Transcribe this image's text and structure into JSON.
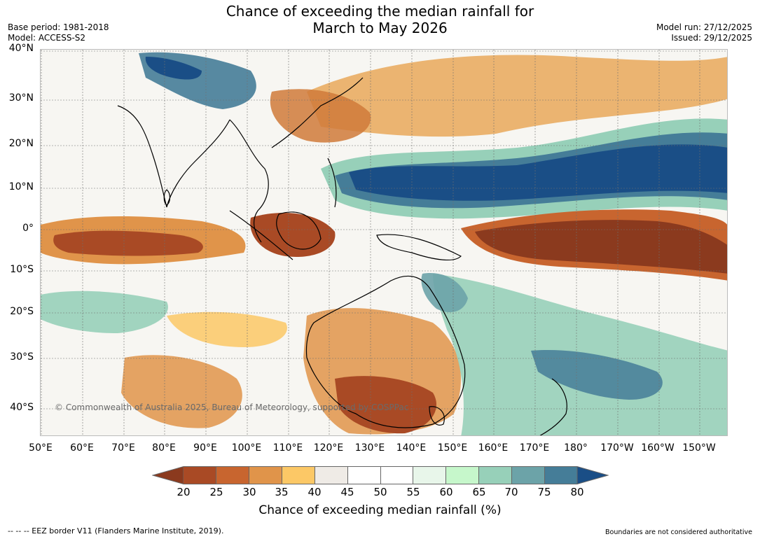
{
  "title": {
    "line1": "Chance of exceeding the median rainfall for",
    "line2": "March to May 2026"
  },
  "meta_left": {
    "base_period": "Base period: 1981-2018",
    "model": "Model: ACCESS-S2"
  },
  "meta_right": {
    "model_run": "Model run: 27/12/2025",
    "issued": "Issued: 29/12/2025"
  },
  "map": {
    "lat_labels": [
      "40°N",
      "30°N",
      "20°N",
      "10°N",
      "0°",
      "10°S",
      "20°S",
      "30°S",
      "40°S"
    ],
    "lon_labels": [
      "50°E",
      "60°E",
      "70°E",
      "80°E",
      "90°E",
      "100°E",
      "110°E",
      "120°E",
      "130°E",
      "140°E",
      "150°E",
      "160°E",
      "170°E",
      "180°",
      "170°W",
      "160°W",
      "150°W"
    ],
    "copyright": "© Commonwealth of Australia 2025, Bureau of Meteorology, supported by COSPPac"
  },
  "colorbar": {
    "ticks": [
      "20",
      "25",
      "30",
      "35",
      "40",
      "45",
      "50",
      "55",
      "60",
      "65",
      "70",
      "75",
      "80"
    ],
    "colors": [
      "#8b3a1e",
      "#a94a25",
      "#c8652f",
      "#e0944a",
      "#fcc866",
      "#efebe6",
      "#ffffff",
      "#ffffff",
      "#e8f6ea",
      "#c6f7cb",
      "#97d0b9",
      "#6ca3a8",
      "#457d98",
      "#1a4e86"
    ],
    "label": "Chance of exceeding median rainfall (%)"
  },
  "footer": {
    "left": "--  --  -- EEZ border V11 (Flanders Marine Institute, 2019).",
    "right": "Boundaries are not considered authoritative"
  }
}
